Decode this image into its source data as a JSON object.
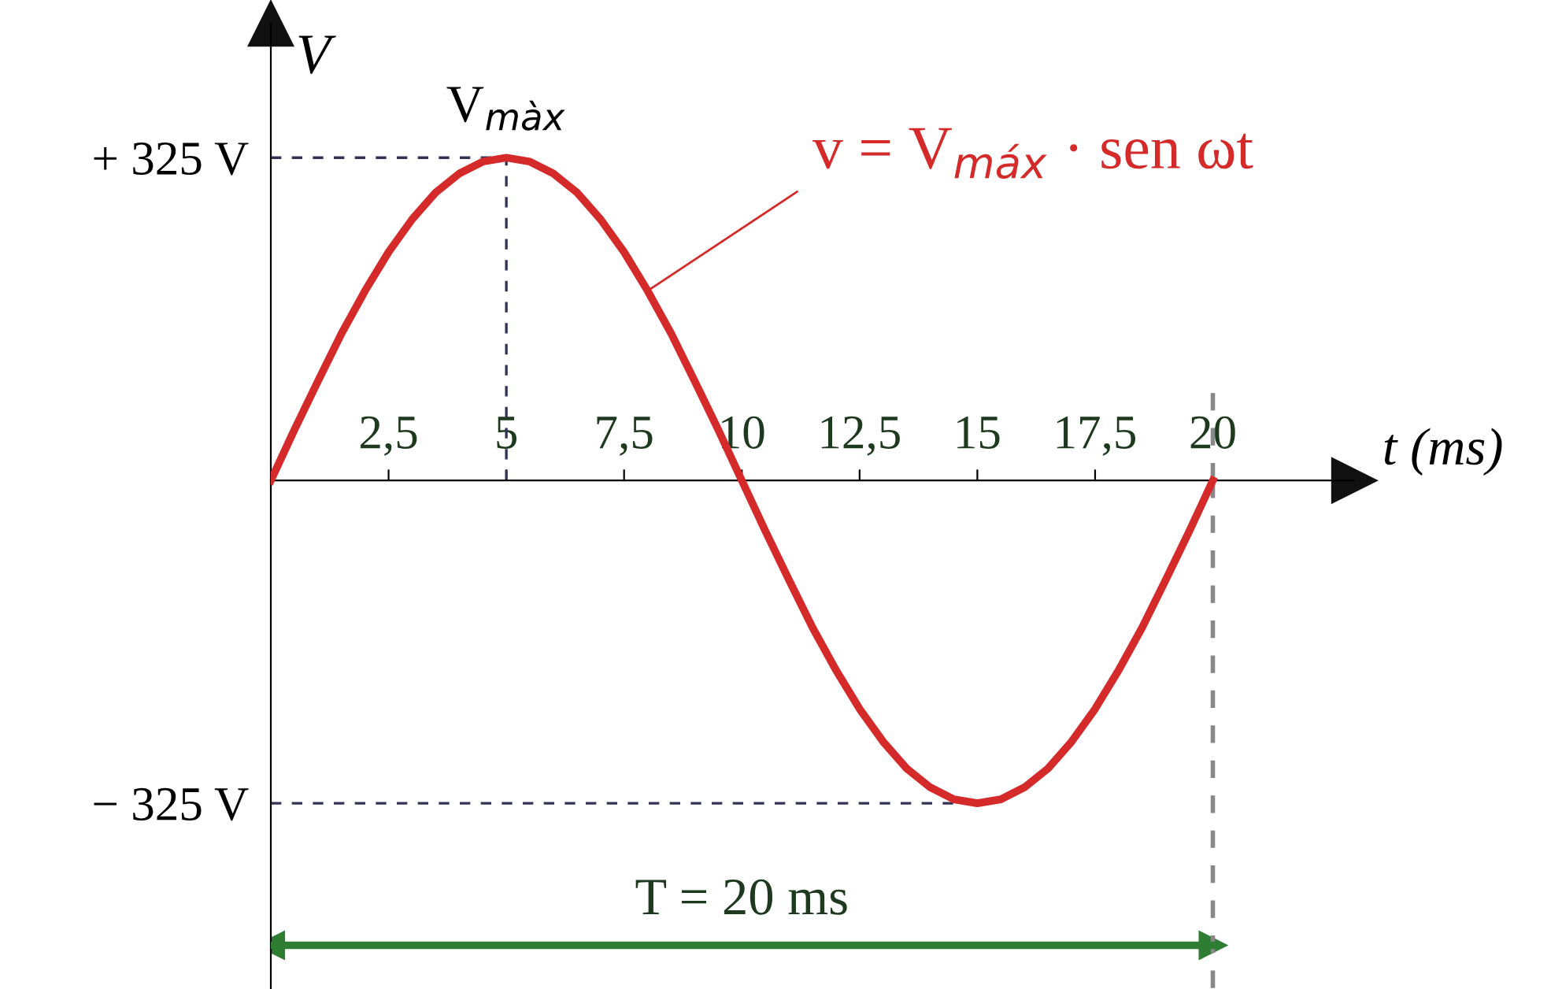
{
  "chart_data": {
    "type": "line",
    "xlabel": "t (ms)",
    "ylabel": "V",
    "x": [
      0,
      0.5,
      1,
      1.5,
      2,
      2.5,
      3,
      3.5,
      4,
      4.5,
      5,
      5.5,
      6,
      6.5,
      7,
      7.5,
      8,
      8.5,
      9,
      9.5,
      10,
      10.5,
      11,
      11.5,
      12,
      12.5,
      13,
      13.5,
      14,
      14.5,
      15,
      15.5,
      16,
      16.5,
      17,
      17.5,
      18,
      18.5,
      19,
      19.5,
      20
    ],
    "series": [
      {
        "type": "line",
        "color": "#2e7d32",
        "marker": "triangle",
        "x": [
          0,
          20
        ],
        "values": [
          -468,
          -468
        ]
      },
      {
        "color": "#d42a2a",
        "values": [
          0,
          51,
          100,
          148,
          191,
          230,
          263,
          290,
          309,
          321,
          325,
          321,
          309,
          290,
          263,
          230,
          191,
          148,
          100,
          51,
          0,
          -51,
          -100,
          -148,
          -191,
          -230,
          -263,
          -290,
          -309,
          -321,
          -325,
          -321,
          -309,
          -290,
          -263,
          -230,
          -191,
          -148,
          -100,
          -51,
          0
        ]
      }
    ],
    "xlim": [
      0,
      23
    ],
    "ylim": [
      -512,
      460
    ],
    "xticks": [
      {
        "value": 2.5,
        "label": "2,5"
      },
      5,
      {
        "value": 7.5,
        "label": "7,5"
      },
      10,
      {
        "value": 12.5,
        "label": "12,5"
      },
      15,
      {
        "value": 17.5,
        "label": "17,5"
      },
      20
    ],
    "yticks": [
      {
        "value": 325,
        "label": "+ 325 V"
      },
      {
        "value": -325,
        "label": "− 325 V"
      }
    ],
    "ref_lines": [
      {
        "axis": "y",
        "value": 325,
        "color": "#333355",
        "line_style": "dashed"
      },
      {
        "axis": "x",
        "value": 5,
        "color": "#333355",
        "line_style": "dashed"
      },
      {
        "axis": "y",
        "value": -325,
        "color": "#333355",
        "line_style": "dashed"
      },
      {
        "axis": "x",
        "value": 20,
        "color": "#888888",
        "line_style": "dashed"
      }
    ],
    "annotations": [
      {
        "text": "V$_{màx}$",
        "x": 5,
        "y": 325
      },
      {
        "text": "v = V$_{máx}$ · sen ωt",
        "x": 8,
        "y": 191
      },
      {
        "text": "T = 20 ms",
        "x": 10,
        "y": -468
      }
    ],
    "grid": false,
    "legend": false,
    "marker": "none",
    "line_style": "solid"
  }
}
